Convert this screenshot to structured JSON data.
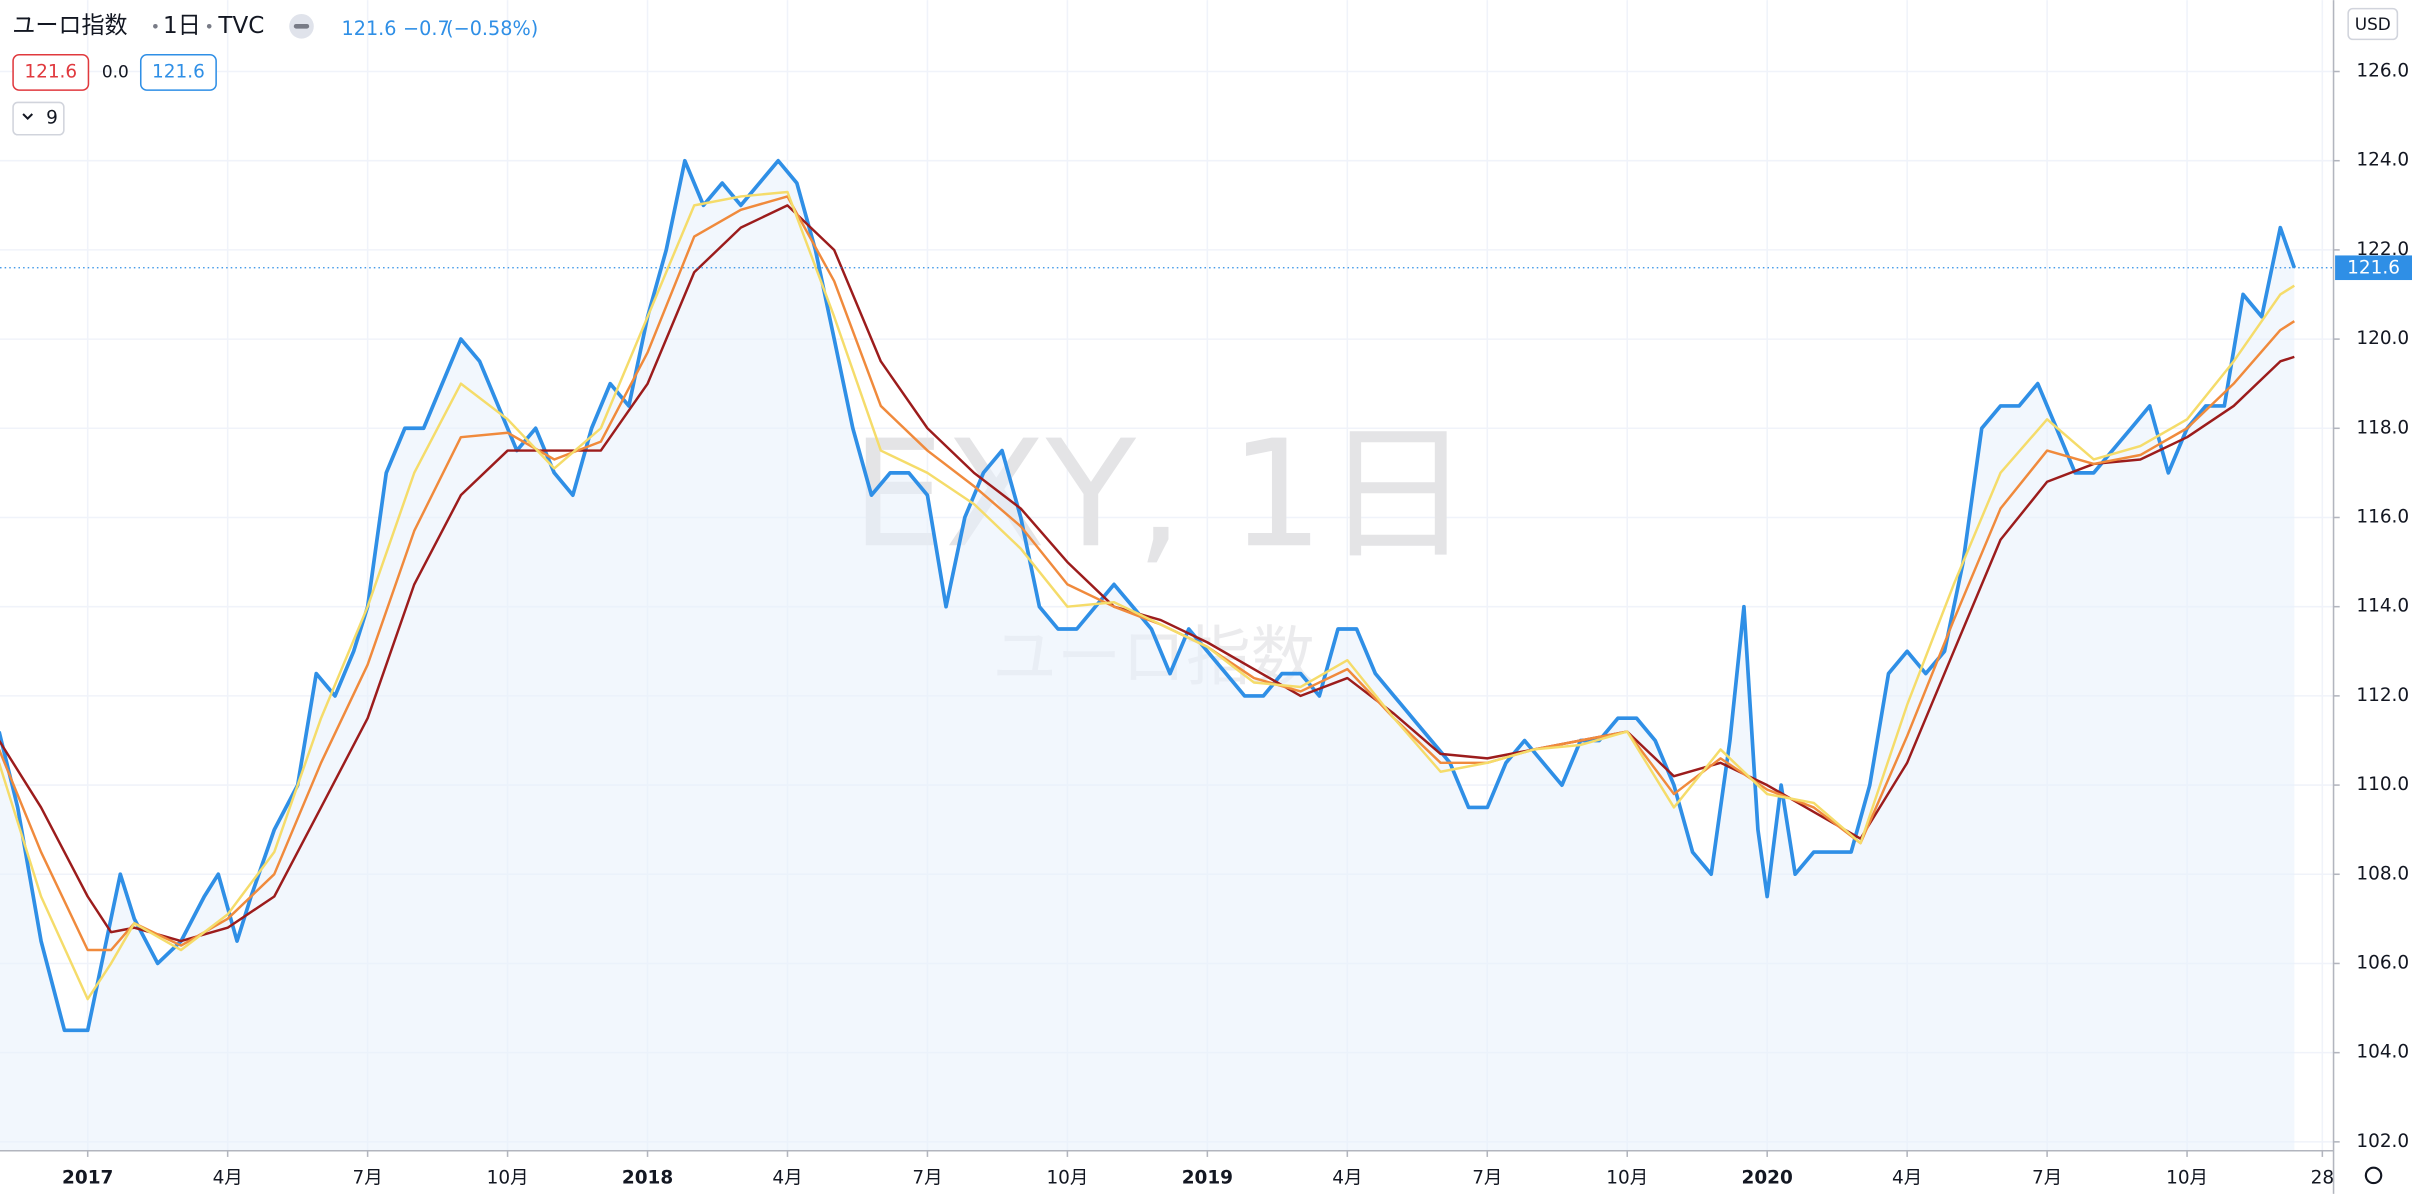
{
  "header": {
    "symbol_name": "ユーロ指数",
    "interval": "1日",
    "source": "TVC",
    "change": "−0.7",
    "change_pct": "(−0.58%)",
    "indicator_values": [
      "121.6",
      "0.0",
      "121.6"
    ],
    "indicator_count": "9",
    "currency": "USD"
  },
  "chart_data": {
    "type": "line",
    "watermark": "EXY, 1日",
    "watermark_sub": "ユーロ指数",
    "last_price": 121.6,
    "xlim": [
      -1.88,
      48.14
    ],
    "ylim": [
      101.8,
      127.6
    ],
    "grid": true,
    "xticks": [
      {
        "value": 0,
        "label": "2017"
      },
      {
        "value": 3,
        "label": "4月"
      },
      {
        "value": 6,
        "label": "7月"
      },
      {
        "value": 9,
        "label": "10月"
      },
      {
        "value": 12,
        "label": "2018"
      },
      {
        "value": 15,
        "label": "4月"
      },
      {
        "value": 18,
        "label": "7月"
      },
      {
        "value": 21,
        "label": "10月"
      },
      {
        "value": 24,
        "label": "2019"
      },
      {
        "value": 27,
        "label": "4月"
      },
      {
        "value": 30,
        "label": "7月"
      },
      {
        "value": 33,
        "label": "10月"
      },
      {
        "value": 36,
        "label": "2020"
      },
      {
        "value": 39,
        "label": "4月"
      },
      {
        "value": 42,
        "label": "7月"
      },
      {
        "value": 45,
        "label": "10月"
      },
      {
        "value": 47.9,
        "label": "28"
      }
    ],
    "yticks": [
      {
        "value": 102,
        "label": "102.0"
      },
      {
        "value": 104,
        "label": "104.0"
      },
      {
        "value": 106,
        "label": "106.0"
      },
      {
        "value": 108,
        "label": "108.0"
      },
      {
        "value": 110,
        "label": "110.0"
      },
      {
        "value": 112,
        "label": "112.0"
      },
      {
        "value": 114,
        "label": "114.0"
      },
      {
        "value": 116,
        "label": "116.0"
      },
      {
        "value": 118,
        "label": "118.0"
      },
      {
        "value": 120,
        "label": "120.0"
      },
      {
        "value": 122,
        "label": "122.0"
      },
      {
        "value": 124,
        "label": "124.0"
      },
      {
        "value": 126,
        "label": "126.0"
      }
    ],
    "series": [
      {
        "color": "#9c1c1c",
        "x": [
          -1.9,
          -1,
          0,
          0.5,
          1,
          2,
          3,
          4,
          5,
          6,
          7,
          8,
          9,
          10,
          11,
          12,
          13,
          14,
          15,
          16,
          17,
          18,
          19,
          20,
          21,
          22,
          23,
          24,
          25,
          26,
          27,
          28,
          29,
          30,
          31,
          32,
          33,
          34,
          35,
          36,
          37,
          38,
          39,
          40,
          41,
          42,
          43,
          44,
          45,
          46,
          47,
          47.3
        ],
        "values": [
          111,
          109.5,
          107.5,
          106.7,
          106.8,
          106.5,
          106.8,
          107.5,
          109.5,
          111.5,
          114.5,
          116.5,
          117.5,
          117.5,
          117.5,
          119,
          121.5,
          122.5,
          123,
          122,
          119.5,
          118,
          117,
          116.2,
          115,
          114,
          113.7,
          113.2,
          112.6,
          112,
          112.4,
          111.6,
          110.7,
          110.6,
          110.8,
          111,
          111.2,
          110.2,
          110.5,
          110,
          109.4,
          108.8,
          110.5,
          113,
          115.5,
          116.8,
          117.2,
          117.3,
          117.8,
          118.5,
          119.5,
          119.6
        ]
      },
      {
        "color": "#f08a3c",
        "x": [
          -1.9,
          -1,
          0,
          0.5,
          1,
          2,
          3,
          4,
          5,
          6,
          7,
          8,
          9,
          10,
          11,
          12,
          13,
          14,
          15,
          16,
          17,
          18,
          19,
          20,
          21,
          22,
          23,
          24,
          25,
          26,
          27,
          28,
          29,
          30,
          31,
          32,
          33,
          34,
          35,
          36,
          37,
          38,
          39,
          40,
          41,
          42,
          43,
          44,
          45,
          46,
          47,
          47.3
        ],
        "values": [
          110.8,
          108.5,
          106.3,
          106.3,
          106.9,
          106.4,
          107,
          108,
          110.5,
          112.7,
          115.7,
          117.8,
          117.9,
          117.3,
          117.7,
          119.7,
          122.3,
          122.9,
          123.2,
          121.3,
          118.5,
          117.5,
          116.7,
          115.8,
          114.5,
          114,
          113.6,
          113.1,
          112.4,
          112.1,
          112.6,
          111.5,
          110.5,
          110.5,
          110.8,
          111,
          111.2,
          109.8,
          110.6,
          109.9,
          109.5,
          108.7,
          111.1,
          113.7,
          116.2,
          117.5,
          117.2,
          117.4,
          118,
          119,
          120.2,
          120.4
        ]
      },
      {
        "color": "#f5dc6a",
        "x": [
          -1.9,
          -1,
          0,
          0.5,
          1,
          2,
          3,
          4,
          5,
          6,
          7,
          8,
          9,
          10,
          11,
          12,
          13,
          14,
          15,
          16,
          17,
          18,
          19,
          20,
          21,
          22,
          23,
          24,
          25,
          26,
          27,
          28,
          29,
          30,
          31,
          32,
          33,
          34,
          35,
          36,
          37,
          38,
          39,
          40,
          41,
          42,
          43,
          44,
          45,
          46,
          47,
          47.3
        ],
        "values": [
          110.5,
          107.5,
          105.2,
          106,
          106.9,
          106.3,
          107.1,
          108.5,
          111.5,
          114,
          117,
          119,
          118.2,
          117.1,
          118,
          120.5,
          123,
          123.2,
          123.3,
          120.5,
          117.5,
          117,
          116.3,
          115.3,
          114,
          114.1,
          113.6,
          113.1,
          112.3,
          112.2,
          112.8,
          111.5,
          110.3,
          110.5,
          110.8,
          110.9,
          111.2,
          109.5,
          110.8,
          109.8,
          109.6,
          108.7,
          111.8,
          114.5,
          117,
          118.2,
          117.3,
          117.6,
          118.2,
          119.5,
          121,
          121.2
        ]
      },
      {
        "color": "#2f8fe6",
        "area": true,
        "x": [
          -1.9,
          -1.5,
          -1.0,
          -0.5,
          0,
          0.3,
          0.7,
          1.0,
          1.5,
          2.0,
          2.5,
          2.8,
          3.2,
          3.5,
          4.0,
          4.5,
          4.9,
          5.3,
          5.7,
          6.0,
          6.4,
          6.8,
          7.2,
          7.6,
          8.0,
          8.4,
          8.8,
          9.2,
          9.6,
          10.0,
          10.4,
          10.8,
          11.2,
          11.6,
          12.0,
          12.4,
          12.8,
          13.2,
          13.6,
          14.0,
          14.4,
          14.8,
          15.2,
          15.6,
          16.0,
          16.4,
          16.8,
          17.2,
          17.6,
          18.0,
          18.4,
          18.8,
          19.2,
          19.6,
          20.0,
          20.4,
          20.8,
          21.2,
          21.6,
          22.0,
          22.4,
          22.8,
          23.2,
          23.6,
          24.0,
          24.4,
          24.8,
          25.2,
          25.6,
          26.0,
          26.4,
          26.8,
          27.2,
          27.6,
          28.0,
          28.4,
          28.8,
          29.2,
          29.6,
          30.0,
          30.4,
          30.8,
          31.2,
          31.6,
          32.0,
          32.4,
          32.8,
          33.2,
          33.6,
          34.0,
          34.4,
          34.8,
          35.2,
          35.5,
          35.8,
          36.0,
          36.3,
          36.6,
          37.0,
          37.4,
          37.8,
          38.2,
          38.6,
          39.0,
          39.4,
          39.8,
          40.2,
          40.6,
          41.0,
          41.4,
          41.8,
          42.2,
          42.6,
          43.0,
          43.4,
          43.8,
          44.2,
          44.6,
          45.0,
          45.4,
          45.8,
          46.2,
          46.6,
          47.0,
          47.3
        ],
        "values": [
          111.2,
          109.5,
          106.5,
          104.5,
          104.5,
          106,
          108,
          107,
          106,
          106.5,
          107.5,
          108,
          106.5,
          107.5,
          109,
          110,
          112.5,
          112,
          113,
          114,
          117,
          118,
          118,
          119,
          120,
          119.5,
          118.5,
          117.5,
          118,
          117,
          116.5,
          118,
          119,
          118.5,
          120.5,
          122,
          124,
          123,
          123.5,
          123,
          123.5,
          124,
          123.5,
          122,
          120,
          118,
          116.5,
          117,
          117,
          116.5,
          114,
          116,
          117,
          117.5,
          116,
          114,
          113.5,
          113.5,
          114,
          114.5,
          114,
          113.5,
          112.5,
          113.5,
          113,
          112.5,
          112,
          112,
          112.5,
          112.5,
          112,
          113.5,
          113.5,
          112.5,
          112,
          111.5,
          111,
          110.5,
          109.5,
          109.5,
          110.5,
          111,
          110.5,
          110,
          111,
          111,
          111.5,
          111.5,
          111,
          110,
          108.5,
          108,
          111,
          114,
          109,
          107.5,
          110,
          108,
          108.5,
          108.5,
          108.5,
          110,
          112.5,
          113,
          112.5,
          113,
          115,
          118,
          118.5,
          118.5,
          119,
          118,
          117,
          117,
          117.5,
          118,
          118.5,
          117,
          118,
          118.5,
          118.5,
          121,
          120.5,
          122.5,
          121.6
        ]
      }
    ]
  }
}
